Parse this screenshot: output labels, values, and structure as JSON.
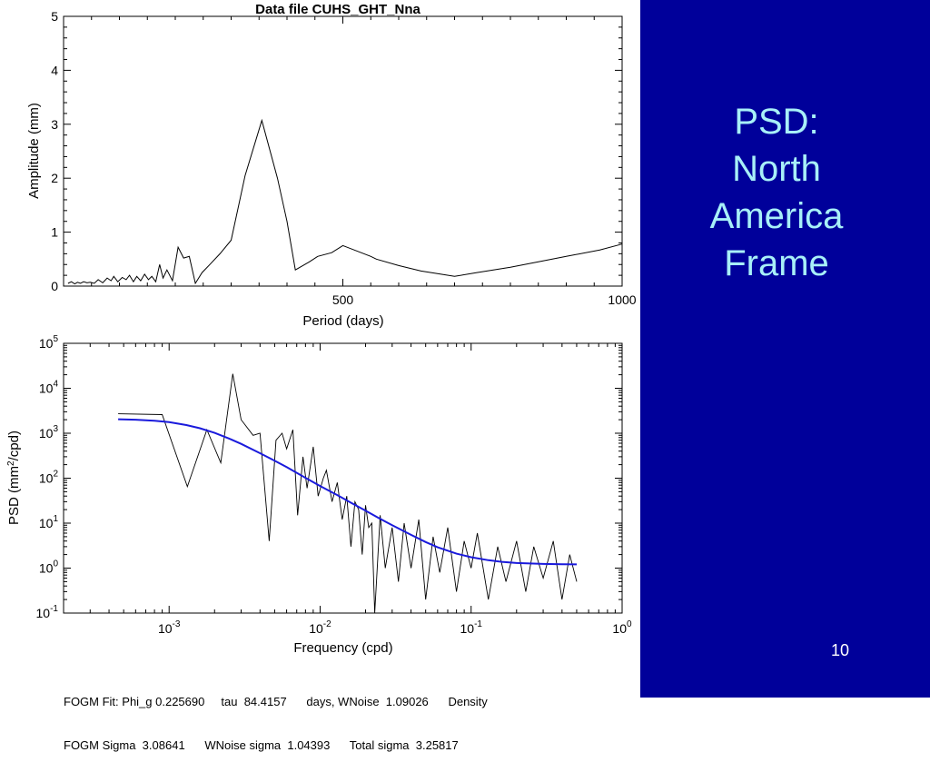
{
  "slide": {
    "title_lines": [
      "PSD:",
      "North",
      "America",
      "Frame"
    ],
    "page_number": "10",
    "panel_color": "#00009a",
    "title_color": "#a8f0f8"
  },
  "fit": {
    "line1": "FOGM Fit: Phi_g 0.225690     tau  84.4157      days, WNoise  1.09026      Density",
    "line2": "FOGM Sigma  3.08641      WNoise sigma  1.04393      Total sigma  3.25817"
  },
  "chart_data": [
    {
      "type": "line",
      "title": "Data file CUHS_GHT_Nna",
      "xlabel": "Period (days)",
      "ylabel": "Amplitude (mm)",
      "xlim": [
        0,
        1000
      ],
      "ylim": [
        0,
        5
      ],
      "xticks": [
        500,
        1000
      ],
      "yticks": [
        0,
        1,
        2,
        3,
        4,
        5
      ],
      "series": [
        {
          "color": "#000000",
          "x": [
            8,
            14,
            20,
            25,
            30,
            36,
            42,
            48,
            55,
            62,
            70,
            78,
            85,
            90,
            97,
            105,
            112,
            118,
            125,
            131,
            138,
            145,
            152,
            158,
            165,
            172,
            178,
            185,
            195,
            205,
            215,
            225,
            236,
            248,
            262,
            280,
            300,
            325,
            355,
            383,
            400,
            415,
            440,
            455,
            480,
            500,
            550,
            560,
            600,
            640,
            700,
            740,
            800,
            850,
            900,
            960,
            1000
          ],
          "y": [
            0.05,
            0.08,
            0.04,
            0.07,
            0.05,
            0.08,
            0.06,
            0.07,
            0.05,
            0.12,
            0.06,
            0.15,
            0.1,
            0.18,
            0.08,
            0.16,
            0.12,
            0.2,
            0.08,
            0.18,
            0.1,
            0.22,
            0.12,
            0.18,
            0.08,
            0.4,
            0.15,
            0.3,
            0.1,
            0.72,
            0.52,
            0.55,
            0.05,
            0.25,
            0.4,
            0.6,
            0.85,
            2.05,
            3.07,
            2.0,
            1.2,
            0.3,
            0.45,
            0.55,
            0.62,
            0.75,
            0.55,
            0.5,
            0.38,
            0.28,
            0.18,
            0.25,
            0.35,
            0.45,
            0.55,
            0.67,
            0.78
          ]
        }
      ]
    },
    {
      "type": "line",
      "title": "",
      "xlabel": "Frequency (cpd)",
      "ylabel": "PSD (mm²/cpd)",
      "xscale": "log",
      "yscale": "log",
      "xlim": [
        0.0002,
        1
      ],
      "ylim": [
        0.1,
        100000
      ],
      "xticks": [
        0.001,
        0.01,
        0.1,
        1
      ],
      "xtick_labels": [
        [
          "10",
          "-3"
        ],
        [
          "10",
          "-2"
        ],
        [
          "10",
          "-1"
        ],
        [
          "10",
          "0"
        ]
      ],
      "yticks": [
        0.1,
        1,
        10,
        100,
        1000,
        10000,
        100000
      ],
      "ytick_labels": [
        [
          "10",
          "-1"
        ],
        [
          "10",
          "0"
        ],
        [
          "10",
          "1"
        ],
        [
          "10",
          "2"
        ],
        [
          "10",
          "3"
        ],
        [
          "10",
          "4"
        ],
        [
          "10",
          "5"
        ]
      ],
      "series": [
        {
          "name": "PSD",
          "color": "#000000",
          "x": [
            0.00046,
            0.0009,
            0.00132,
            0.00178,
            0.0022,
            0.00264,
            0.003,
            0.0036,
            0.004,
            0.0046,
            0.0051,
            0.0056,
            0.006,
            0.0066,
            0.0071,
            0.0077,
            0.0082,
            0.009,
            0.0097,
            0.0105,
            0.011,
            0.012,
            0.013,
            0.014,
            0.015,
            0.016,
            0.017,
            0.018,
            0.019,
            0.02,
            0.021,
            0.022,
            0.023,
            0.025,
            0.027,
            0.03,
            0.033,
            0.036,
            0.04,
            0.045,
            0.05,
            0.056,
            0.062,
            0.07,
            0.08,
            0.09,
            0.1,
            0.11,
            0.13,
            0.15,
            0.17,
            0.2,
            0.23,
            0.26,
            0.3,
            0.35,
            0.4,
            0.45,
            0.5
          ],
          "y": [
            2700,
            2600,
            65,
            1200,
            220,
            21000,
            2000,
            900,
            1000,
            4,
            700,
            1000,
            450,
            1200,
            15,
            300,
            60,
            500,
            40,
            100,
            150,
            30,
            80,
            12,
            40,
            3,
            30,
            20,
            2,
            25,
            8,
            10,
            0.1,
            15,
            1,
            8,
            0.5,
            10,
            1,
            12,
            0.2,
            5,
            0.8,
            8,
            0.3,
            4,
            1,
            6,
            0.2,
            3,
            0.5,
            4,
            0.3,
            3,
            0.6,
            4,
            0.2,
            2,
            0.5
          ]
        },
        {
          "name": "FOGM fit",
          "color": "#1a1adc",
          "x": [
            0.00046,
            0.0006,
            0.0008,
            0.001,
            0.0013,
            0.0016,
            0.002,
            0.0025,
            0.003,
            0.004,
            0.005,
            0.006,
            0.008,
            0.01,
            0.013,
            0.016,
            0.02,
            0.025,
            0.03,
            0.04,
            0.05,
            0.06,
            0.08,
            0.1,
            0.13,
            0.16,
            0.2,
            0.3,
            0.4,
            0.5
          ],
          "y": [
            2050,
            2000,
            1900,
            1760,
            1520,
            1290,
            1020,
            760,
            580,
            360,
            245,
            176,
            102,
            67,
            42,
            28.5,
            19,
            12.5,
            9,
            5.5,
            3.8,
            2.9,
            2.1,
            1.75,
            1.5,
            1.38,
            1.3,
            1.24,
            1.22,
            1.21
          ]
        }
      ]
    }
  ]
}
